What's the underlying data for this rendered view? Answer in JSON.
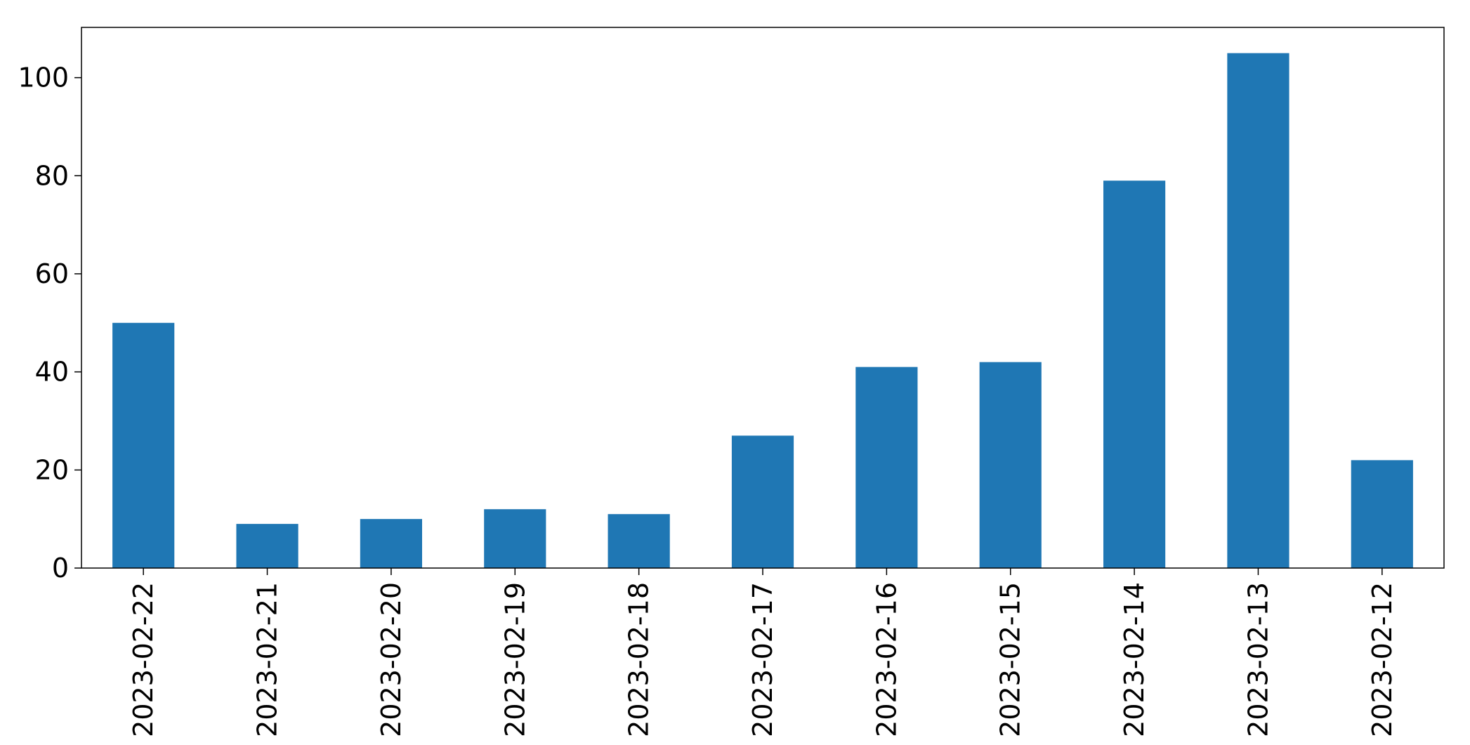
{
  "chart_data": {
    "type": "bar",
    "title": "",
    "xlabel": "",
    "ylabel": "",
    "categories": [
      "2023-02-22",
      "2023-02-21",
      "2023-02-20",
      "2023-02-19",
      "2023-02-18",
      "2023-02-17",
      "2023-02-16",
      "2023-02-15",
      "2023-02-14",
      "2023-02-13",
      "2023-02-12"
    ],
    "values": [
      50,
      9,
      10,
      12,
      11,
      27,
      41,
      42,
      79,
      105,
      22
    ],
    "ylim": [
      0,
      110.25
    ],
    "yticks": [
      0,
      20,
      40,
      60,
      80,
      100
    ],
    "grid": false,
    "legend": "none",
    "bar_color": "#1f77b4"
  }
}
